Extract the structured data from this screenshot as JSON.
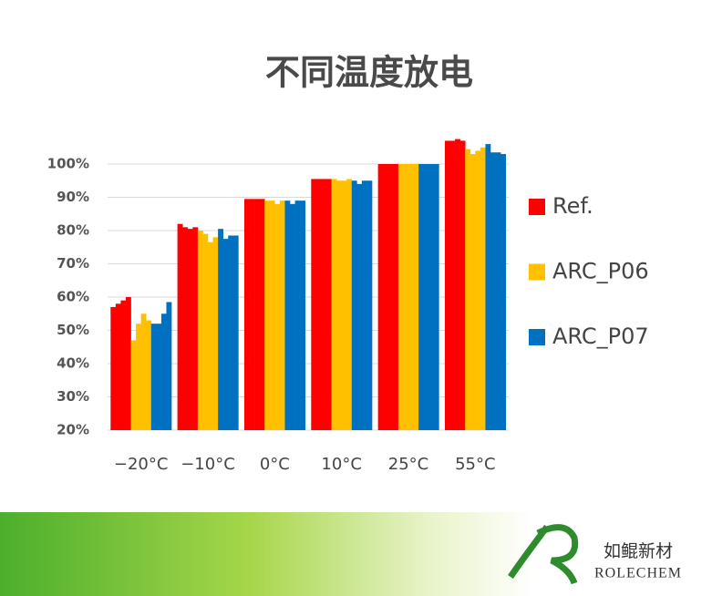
{
  "chart_data": {
    "type": "bar",
    "title": "不同温度放电",
    "categories": [
      "−20°C",
      "−10°C",
      "0°C",
      "10°C",
      "25°C",
      "55°C"
    ],
    "series": [
      {
        "name": "Ref.",
        "color": "#ff0000",
        "values": [
          [
            57,
            58,
            59,
            60
          ],
          [
            82,
            81,
            80.5,
            81
          ],
          [
            89.5,
            89.5,
            89.5,
            89.5
          ],
          [
            95.5,
            95.5,
            95.5,
            95.5
          ],
          [
            100,
            100,
            100,
            100
          ],
          [
            107,
            107,
            107.5,
            107
          ]
        ]
      },
      {
        "name": "ARC_P06",
        "color": "#ffc000",
        "values": [
          [
            47,
            52,
            55,
            53
          ],
          [
            80,
            79,
            76.5,
            78
          ],
          [
            89,
            89,
            88,
            89
          ],
          [
            95.5,
            95,
            95,
            95.5
          ],
          [
            100,
            100,
            100,
            100
          ],
          [
            104.5,
            103,
            104,
            105
          ]
        ]
      },
      {
        "name": "ARC_P07",
        "color": "#0070c0",
        "values": [
          [
            52,
            52,
            55,
            58.5
          ],
          [
            80.5,
            77.5,
            78.5,
            78.5
          ],
          [
            89,
            88,
            89,
            89
          ],
          [
            95,
            94,
            95,
            95
          ],
          [
            100,
            100,
            100,
            100
          ],
          [
            106,
            103.5,
            103.5,
            103
          ]
        ]
      }
    ],
    "ylim": [
      20,
      110
    ],
    "yticks": [
      {
        "value": 20,
        "label": "20%"
      },
      {
        "value": 30,
        "label": "30%"
      },
      {
        "value": 40,
        "label": "40%"
      },
      {
        "value": 50,
        "label": "50%"
      },
      {
        "value": 60,
        "label": "60%"
      },
      {
        "value": 70,
        "label": "70%"
      },
      {
        "value": 80,
        "label": "80%"
      },
      {
        "value": 90,
        "label": "90%"
      },
      {
        "value": 100,
        "label": "100%"
      }
    ],
    "grid": true,
    "legend": "right"
  },
  "brand": {
    "name": "如鲲新材",
    "latin": "ROLECHEM"
  }
}
